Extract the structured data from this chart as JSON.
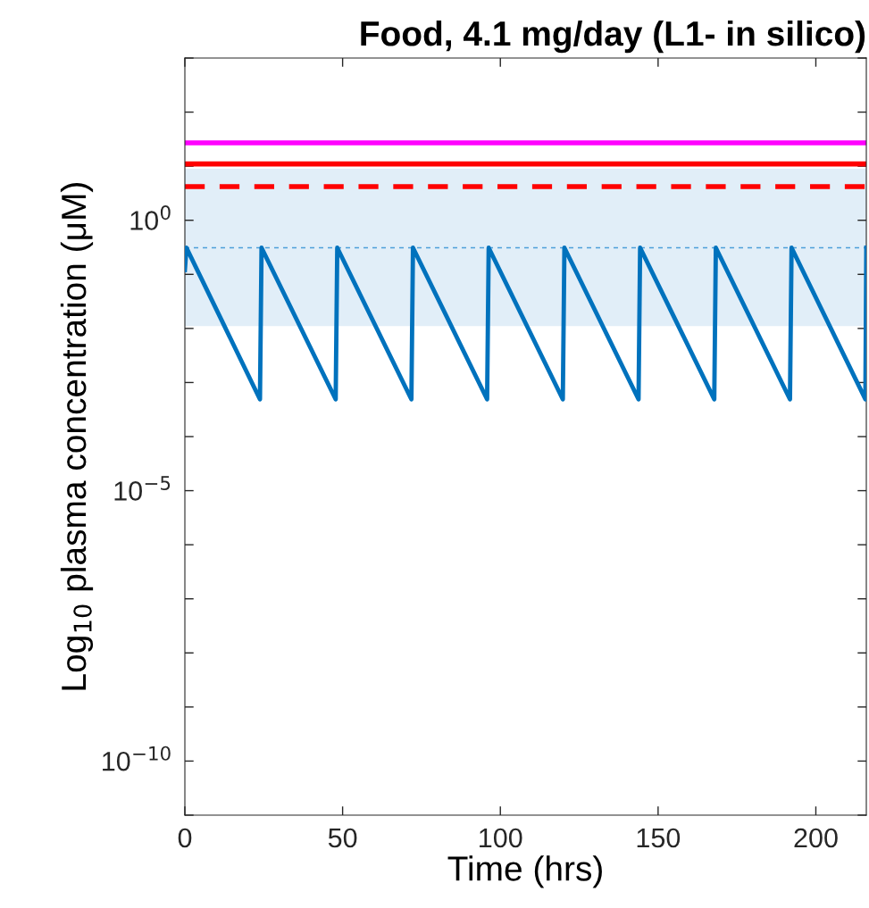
{
  "chart_data": {
    "type": "line",
    "title": "Food, 4.1 mg/day (L1- in silico)",
    "xlabel": "Time (hrs)",
    "ylabel": "Log$_{10}$ plasma concentration (μM)",
    "log": "y",
    "xlim": [
      0,
      216
    ],
    "ylim": [
      1e-11,
      1000
    ],
    "xticks": [
      0,
      50,
      100,
      150,
      200
    ],
    "yticks": [
      {
        "value": 1e-11,
        "label": null
      },
      {
        "value": 1e-10,
        "label": "10$^{−10}$"
      },
      {
        "value": 1e-09,
        "label": null
      },
      {
        "value": 1e-08,
        "label": null
      },
      {
        "value": 1e-07,
        "label": null
      },
      {
        "value": 1e-06,
        "label": null
      },
      {
        "value": 1e-05,
        "label": "10$^{−5}$"
      },
      {
        "value": 0.0001,
        "label": null
      },
      {
        "value": 0.001,
        "label": null
      },
      {
        "value": 0.01,
        "label": null
      },
      {
        "value": 0.1,
        "label": null
      },
      {
        "value": 1,
        "label": "10$^{0}$"
      },
      {
        "value": 10,
        "label": null
      },
      {
        "value": 100,
        "label": null
      },
      {
        "value": 1000,
        "label": null
      }
    ],
    "grid": false,
    "legend": false,
    "line_style": "solid",
    "marker": "none",
    "series": [
      {
        "color": "#0072bd",
        "x": [
          0,
          0.5,
          23.8,
          24.3,
          47.8,
          48.3,
          71.8,
          72.3,
          95.8,
          96.3,
          119.8,
          120.3,
          143.8,
          144.3,
          167.8,
          168.3,
          191.8,
          192.3,
          215.7,
          216
        ],
        "values": [
          0.12,
          0.31,
          0.00049,
          0.31,
          0.00049,
          0.31,
          0.00049,
          0.31,
          0.00049,
          0.31,
          0.00049,
          0.31,
          0.00049,
          0.31,
          0.00049,
          0.31,
          0.00049,
          0.31,
          0.00049,
          0.31
        ]
      }
    ],
    "ref_lines": [
      {
        "axis": "y",
        "value": 27,
        "color": "#ff00ff",
        "line_style": "solid"
      },
      {
        "axis": "y",
        "value": 11,
        "color": "#ff0000",
        "line_style": "solid"
      },
      {
        "axis": "y",
        "value": 4.2,
        "color": "#ff0000",
        "line_style": "dashed"
      },
      {
        "axis": "y",
        "value": 0.31,
        "color": "#4d9fd9",
        "line_style": "dotted"
      }
    ],
    "bands": [
      {
        "axis": "y",
        "from": 0.011,
        "to": 9,
        "color": "#e1eef8"
      }
    ]
  }
}
